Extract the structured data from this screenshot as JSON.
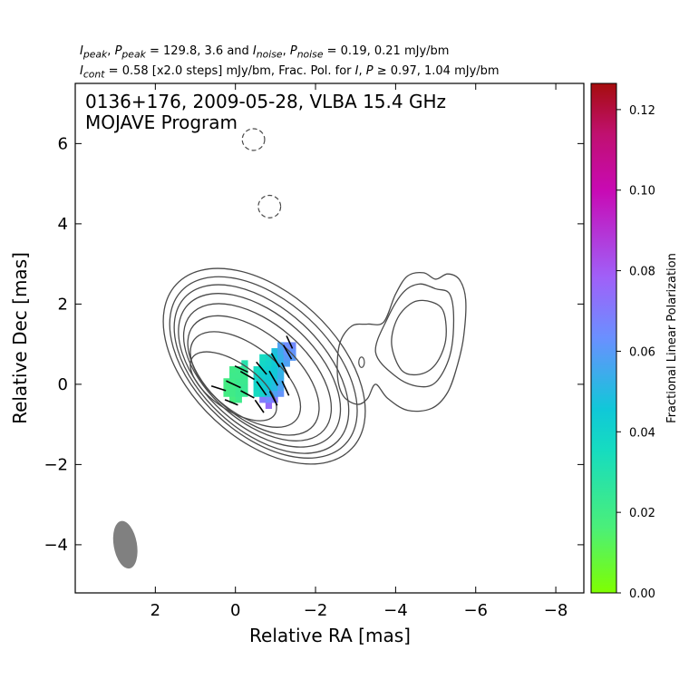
{
  "header": {
    "line1": {
      "i_peak_label": "I",
      "i_peak_sub": "peak",
      "p_peak_label": "P",
      "p_peak_sub": "peak",
      "peak_values": "= 129.8, 3.6 and",
      "i_noise_label": "I",
      "i_noise_sub": "noise",
      "p_noise_label": "P",
      "p_noise_sub": "noise",
      "noise_values": "= 0.19, 0.21 mJy/bm"
    },
    "line2": {
      "i_cont_label": "I",
      "i_cont_sub": "cont",
      "cont_text": "= 0.58 [x2.0 steps] mJy/bm, Frac. Pol. for",
      "i_label": "I",
      "p_label": "P",
      "threshold_text": "≥ 0.97, 1.04 mJy/bm"
    }
  },
  "chart_data": {
    "type": "contour",
    "title_lines": [
      "0136+176, 2009-05-28, VLBA 15.4 GHz",
      "MOJAVE Program"
    ],
    "xlabel": "Relative RA [mas]",
    "ylabel": "Relative Dec [mas]",
    "xlim": [
      4.0,
      -8.7
    ],
    "ylim": [
      -5.2,
      7.5
    ],
    "xticks": [
      2,
      0,
      -2,
      -4,
      -6,
      -8
    ],
    "xtick_labels": [
      "2",
      "0",
      "−2",
      "−4",
      "−6",
      "−8"
    ],
    "yticks": [
      -4,
      -2,
      0,
      2,
      4,
      6
    ],
    "ytick_labels": [
      "−4",
      "−2",
      "0",
      "2",
      "4",
      "6"
    ],
    "contour_color": "#4a4a4a",
    "contour_base_mJy_per_beam": 0.58,
    "contour_step_factor": 2.0,
    "core_contours": [
      {
        "cx": 0.05,
        "cy": -0.05,
        "a": 1.25,
        "b": 0.58,
        "pa": 145
      },
      {
        "cx": -0.25,
        "cy": 0.12,
        "a": 1.62,
        "b": 0.83,
        "pa": 142
      },
      {
        "cx": -0.45,
        "cy": 0.22,
        "a": 1.95,
        "b": 1.05,
        "pa": 140
      },
      {
        "cx": -0.55,
        "cy": 0.3,
        "a": 2.2,
        "b": 1.22,
        "pa": 139
      },
      {
        "cx": -0.6,
        "cy": 0.35,
        "a": 2.42,
        "b": 1.38,
        "pa": 138
      },
      {
        "cx": -0.65,
        "cy": 0.38,
        "a": 2.62,
        "b": 1.52,
        "pa": 137
      },
      {
        "cx": -0.7,
        "cy": 0.42,
        "a": 2.8,
        "b": 1.66,
        "pa": 137
      },
      {
        "cx": -0.72,
        "cy": 0.45,
        "a": 3.0,
        "b": 1.82,
        "pa": 137
      }
    ],
    "jet_outer_contour": [
      [
        -2.55,
        0.2
      ],
      [
        -2.6,
        1.0
      ],
      [
        -2.9,
        1.45
      ],
      [
        -3.3,
        1.5
      ],
      [
        -3.7,
        1.55
      ],
      [
        -4.0,
        2.25
      ],
      [
        -4.3,
        2.7
      ],
      [
        -4.7,
        2.78
      ],
      [
        -5.0,
        2.62
      ],
      [
        -5.3,
        2.75
      ],
      [
        -5.6,
        2.6
      ],
      [
        -5.75,
        2.1
      ],
      [
        -5.7,
        1.2
      ],
      [
        -5.55,
        0.5
      ],
      [
        -5.3,
        -0.2
      ],
      [
        -4.9,
        -0.6
      ],
      [
        -4.3,
        -0.65
      ],
      [
        -3.8,
        -0.35
      ],
      [
        -3.5,
        0.0
      ],
      [
        -3.3,
        -0.35
      ],
      [
        -3.05,
        -0.5
      ],
      [
        -2.7,
        -0.3
      ]
    ],
    "jet_mid_contour": [
      [
        -3.5,
        0.8
      ],
      [
        -3.8,
        1.65
      ],
      [
        -4.2,
        2.3
      ],
      [
        -4.6,
        2.5
      ],
      [
        -5.0,
        2.38
      ],
      [
        -5.35,
        2.25
      ],
      [
        -5.45,
        1.6
      ],
      [
        -5.35,
        0.7
      ],
      [
        -5.0,
        0.05
      ],
      [
        -4.55,
        -0.05
      ],
      [
        -4.0,
        0.2
      ]
    ],
    "jet_inner_contour": [
      [
        -3.9,
        1.0
      ],
      [
        -4.05,
        1.65
      ],
      [
        -4.45,
        2.05
      ],
      [
        -4.9,
        2.05
      ],
      [
        -5.2,
        1.8
      ],
      [
        -5.25,
        1.1
      ],
      [
        -5.0,
        0.5
      ],
      [
        -4.6,
        0.25
      ],
      [
        -4.15,
        0.35
      ]
    ],
    "jet_small_contour": {
      "cx": -3.15,
      "cy": 0.55,
      "rx": 0.07,
      "ry": 0.13
    },
    "negative_contours": [
      {
        "cx": -0.45,
        "cy": 6.1,
        "rx": 0.28,
        "ry": 0.27
      },
      {
        "cx": -0.85,
        "cy": 4.43,
        "rx": 0.28,
        "ry": 0.28
      }
    ],
    "fractional_pol_patches": [
      {
        "x": 0.3,
        "y": -0.3,
        "w": 0.15,
        "h": 0.15,
        "value": 0.019
      },
      {
        "x": 0.3,
        "y": -0.15,
        "w": 0.15,
        "h": 0.15,
        "value": 0.019
      },
      {
        "x": 0.3,
        "y": 0.0,
        "w": 0.15,
        "h": 0.15,
        "value": 0.019
      },
      {
        "x": 0.15,
        "y": -0.45,
        "w": 0.15,
        "h": 0.15,
        "value": 0.018
      },
      {
        "x": 0.15,
        "y": -0.3,
        "w": 0.15,
        "h": 0.15,
        "value": 0.02
      },
      {
        "x": 0.15,
        "y": -0.15,
        "w": 0.15,
        "h": 0.15,
        "value": 0.02
      },
      {
        "x": 0.15,
        "y": 0.0,
        "w": 0.15,
        "h": 0.15,
        "value": 0.02
      },
      {
        "x": 0.15,
        "y": 0.15,
        "w": 0.15,
        "h": 0.15,
        "value": 0.021
      },
      {
        "x": 0.15,
        "y": 0.3,
        "w": 0.15,
        "h": 0.15,
        "value": 0.02
      },
      {
        "x": 0.0,
        "y": -0.45,
        "w": 0.15,
        "h": 0.15,
        "value": 0.021
      },
      {
        "x": 0.0,
        "y": -0.3,
        "w": 0.15,
        "h": 0.15,
        "value": 0.022
      },
      {
        "x": 0.0,
        "y": -0.15,
        "w": 0.15,
        "h": 0.15,
        "value": 0.022
      },
      {
        "x": 0.0,
        "y": 0.0,
        "w": 0.15,
        "h": 0.15,
        "value": 0.022
      },
      {
        "x": 0.0,
        "y": 0.15,
        "w": 0.15,
        "h": 0.15,
        "value": 0.021
      },
      {
        "x": 0.0,
        "y": 0.3,
        "w": 0.15,
        "h": 0.15,
        "value": 0.021
      },
      {
        "x": -0.15,
        "y": -0.3,
        "w": 0.15,
        "h": 0.15,
        "value": 0.023
      },
      {
        "x": -0.15,
        "y": -0.15,
        "w": 0.15,
        "h": 0.15,
        "value": 0.023
      },
      {
        "x": -0.15,
        "y": 0.0,
        "w": 0.15,
        "h": 0.15,
        "value": 0.022
      },
      {
        "x": -0.15,
        "y": 0.15,
        "w": 0.15,
        "h": 0.15,
        "value": 0.022
      },
      {
        "x": -0.15,
        "y": 0.3,
        "w": 0.15,
        "h": 0.15,
        "value": 0.024
      },
      {
        "x": -0.15,
        "y": 0.45,
        "w": 0.15,
        "h": 0.15,
        "value": 0.03
      },
      {
        "x": -0.45,
        "y": -0.3,
        "w": 0.15,
        "h": 0.15,
        "value": 0.036
      },
      {
        "x": -0.45,
        "y": -0.15,
        "w": 0.15,
        "h": 0.15,
        "value": 0.038
      },
      {
        "x": -0.45,
        "y": 0.0,
        "w": 0.15,
        "h": 0.15,
        "value": 0.04
      },
      {
        "x": -0.45,
        "y": 0.15,
        "w": 0.15,
        "h": 0.15,
        "value": 0.038
      },
      {
        "x": -0.45,
        "y": 0.3,
        "w": 0.15,
        "h": 0.15,
        "value": 0.036
      },
      {
        "x": -0.6,
        "y": -0.45,
        "w": 0.15,
        "h": 0.15,
        "value": 0.07
      },
      {
        "x": -0.6,
        "y": -0.3,
        "w": 0.15,
        "h": 0.15,
        "value": 0.04
      },
      {
        "x": -0.6,
        "y": -0.15,
        "w": 0.15,
        "h": 0.15,
        "value": 0.042
      },
      {
        "x": -0.6,
        "y": 0.0,
        "w": 0.15,
        "h": 0.15,
        "value": 0.043
      },
      {
        "x": -0.6,
        "y": 0.15,
        "w": 0.15,
        "h": 0.15,
        "value": 0.042
      },
      {
        "x": -0.6,
        "y": 0.3,
        "w": 0.15,
        "h": 0.15,
        "value": 0.04
      },
      {
        "x": -0.6,
        "y": 0.45,
        "w": 0.15,
        "h": 0.15,
        "value": 0.038
      },
      {
        "x": -0.6,
        "y": 0.6,
        "w": 0.15,
        "h": 0.15,
        "value": 0.036
      },
      {
        "x": -0.75,
        "y": -0.6,
        "w": 0.15,
        "h": 0.15,
        "value": 0.075
      },
      {
        "x": -0.75,
        "y": -0.45,
        "w": 0.15,
        "h": 0.15,
        "value": 0.065
      },
      {
        "x": -0.75,
        "y": -0.3,
        "w": 0.15,
        "h": 0.15,
        "value": 0.05
      },
      {
        "x": -0.75,
        "y": -0.15,
        "w": 0.15,
        "h": 0.15,
        "value": 0.046
      },
      {
        "x": -0.75,
        "y": 0.0,
        "w": 0.15,
        "h": 0.15,
        "value": 0.045
      },
      {
        "x": -0.75,
        "y": 0.15,
        "w": 0.15,
        "h": 0.15,
        "value": 0.044
      },
      {
        "x": -0.75,
        "y": 0.3,
        "w": 0.15,
        "h": 0.15,
        "value": 0.042
      },
      {
        "x": -0.75,
        "y": 0.45,
        "w": 0.15,
        "h": 0.15,
        "value": 0.04
      },
      {
        "x": -0.75,
        "y": 0.6,
        "w": 0.15,
        "h": 0.15,
        "value": 0.039
      },
      {
        "x": -0.9,
        "y": -0.45,
        "w": 0.15,
        "h": 0.15,
        "value": 0.07
      },
      {
        "x": -0.9,
        "y": -0.3,
        "w": 0.15,
        "h": 0.15,
        "value": 0.058
      },
      {
        "x": -0.9,
        "y": -0.15,
        "w": 0.15,
        "h": 0.15,
        "value": 0.05
      },
      {
        "x": -0.9,
        "y": 0.0,
        "w": 0.15,
        "h": 0.15,
        "value": 0.048
      },
      {
        "x": -0.9,
        "y": 0.15,
        "w": 0.15,
        "h": 0.15,
        "value": 0.046
      },
      {
        "x": -0.9,
        "y": 0.3,
        "w": 0.15,
        "h": 0.15,
        "value": 0.045
      },
      {
        "x": -0.9,
        "y": 0.45,
        "w": 0.15,
        "h": 0.15,
        "value": 0.044
      },
      {
        "x": -0.9,
        "y": 0.6,
        "w": 0.15,
        "h": 0.15,
        "value": 0.045
      },
      {
        "x": -0.9,
        "y": 0.75,
        "w": 0.15,
        "h": 0.15,
        "value": 0.048
      },
      {
        "x": -1.05,
        "y": -0.3,
        "w": 0.15,
        "h": 0.15,
        "value": 0.062
      },
      {
        "x": -1.05,
        "y": -0.15,
        "w": 0.15,
        "h": 0.15,
        "value": 0.058
      },
      {
        "x": -1.05,
        "y": 0.0,
        "w": 0.15,
        "h": 0.15,
        "value": 0.055
      },
      {
        "x": -1.05,
        "y": 0.15,
        "w": 0.15,
        "h": 0.15,
        "value": 0.053
      },
      {
        "x": -1.05,
        "y": 0.3,
        "w": 0.15,
        "h": 0.15,
        "value": 0.052
      },
      {
        "x": -1.05,
        "y": 0.45,
        "w": 0.15,
        "h": 0.15,
        "value": 0.052
      },
      {
        "x": -1.05,
        "y": 0.6,
        "w": 0.15,
        "h": 0.15,
        "value": 0.053
      },
      {
        "x": -1.05,
        "y": 0.75,
        "w": 0.15,
        "h": 0.15,
        "value": 0.055
      },
      {
        "x": -1.05,
        "y": 0.9,
        "w": 0.15,
        "h": 0.15,
        "value": 0.058
      },
      {
        "x": -1.2,
        "y": 0.45,
        "w": 0.15,
        "h": 0.15,
        "value": 0.058
      },
      {
        "x": -1.2,
        "y": 0.6,
        "w": 0.15,
        "h": 0.15,
        "value": 0.06
      },
      {
        "x": -1.2,
        "y": 0.75,
        "w": 0.15,
        "h": 0.15,
        "value": 0.062
      },
      {
        "x": -1.2,
        "y": 0.9,
        "w": 0.15,
        "h": 0.15,
        "value": 0.064
      },
      {
        "x": -1.35,
        "y": 0.6,
        "w": 0.15,
        "h": 0.15,
        "value": 0.06
      },
      {
        "x": -1.35,
        "y": 0.75,
        "w": 0.15,
        "h": 0.15,
        "value": 0.062
      },
      {
        "x": -1.35,
        "y": 0.9,
        "w": 0.15,
        "h": 0.15,
        "value": 0.065
      }
    ],
    "evpa_vectors": [
      {
        "x": 0.42,
        "y": -0.1,
        "len": 0.38,
        "angle_deg": 18
      },
      {
        "x": 0.1,
        "y": -0.45,
        "len": 0.35,
        "angle_deg": 22
      },
      {
        "x": 0.05,
        "y": 0.0,
        "len": 0.4,
        "angle_deg": 25
      },
      {
        "x": -0.3,
        "y": -0.25,
        "len": 0.38,
        "angle_deg": 28
      },
      {
        "x": -0.3,
        "y": 0.22,
        "len": 0.4,
        "angle_deg": 30
      },
      {
        "x": -0.15,
        "y": 0.38,
        "len": 0.36,
        "angle_deg": 25
      },
      {
        "x": -0.6,
        "y": -0.55,
        "len": 0.38,
        "angle_deg": 55
      },
      {
        "x": -0.65,
        "y": -0.1,
        "len": 0.42,
        "angle_deg": 55
      },
      {
        "x": -0.65,
        "y": 0.4,
        "len": 0.4,
        "angle_deg": 50
      },
      {
        "x": -0.95,
        "y": -0.35,
        "len": 0.4,
        "angle_deg": 62
      },
      {
        "x": -0.95,
        "y": 0.15,
        "len": 0.42,
        "angle_deg": 60
      },
      {
        "x": -1.0,
        "y": 0.6,
        "len": 0.4,
        "angle_deg": 60
      },
      {
        "x": -1.25,
        "y": -0.1,
        "len": 0.4,
        "angle_deg": 65
      },
      {
        "x": -1.25,
        "y": 0.35,
        "len": 0.42,
        "angle_deg": 63
      },
      {
        "x": -1.3,
        "y": 0.8,
        "len": 0.4,
        "angle_deg": 60
      },
      {
        "x": -1.35,
        "y": 1.05,
        "len": 0.35,
        "angle_deg": 65
      }
    ],
    "beam": {
      "cx": 2.75,
      "cy": -4.0,
      "major": 1.2,
      "minor": 0.58,
      "pa_deg": -10,
      "color": "#808080"
    },
    "colorbar": {
      "label": "Fractional Linear Polarization",
      "min": 0.0,
      "max": 0.1265,
      "ticks": [
        0.0,
        0.02,
        0.04,
        0.06,
        0.08,
        0.1,
        0.12
      ],
      "tick_labels": [
        "0.00",
        "0.02",
        "0.04",
        "0.06",
        "0.08",
        "0.10",
        "0.12"
      ],
      "colormap": [
        [
          0.0,
          "#7fff00"
        ],
        [
          0.13,
          "#4aef7a"
        ],
        [
          0.28,
          "#16dcc0"
        ],
        [
          0.36,
          "#10c8d8"
        ],
        [
          0.5,
          "#6a90ff"
        ],
        [
          0.62,
          "#a060f8"
        ],
        [
          0.79,
          "#c80ab4"
        ],
        [
          0.9,
          "#c01070"
        ],
        [
          1.0,
          "#a50d0d"
        ]
      ]
    }
  }
}
